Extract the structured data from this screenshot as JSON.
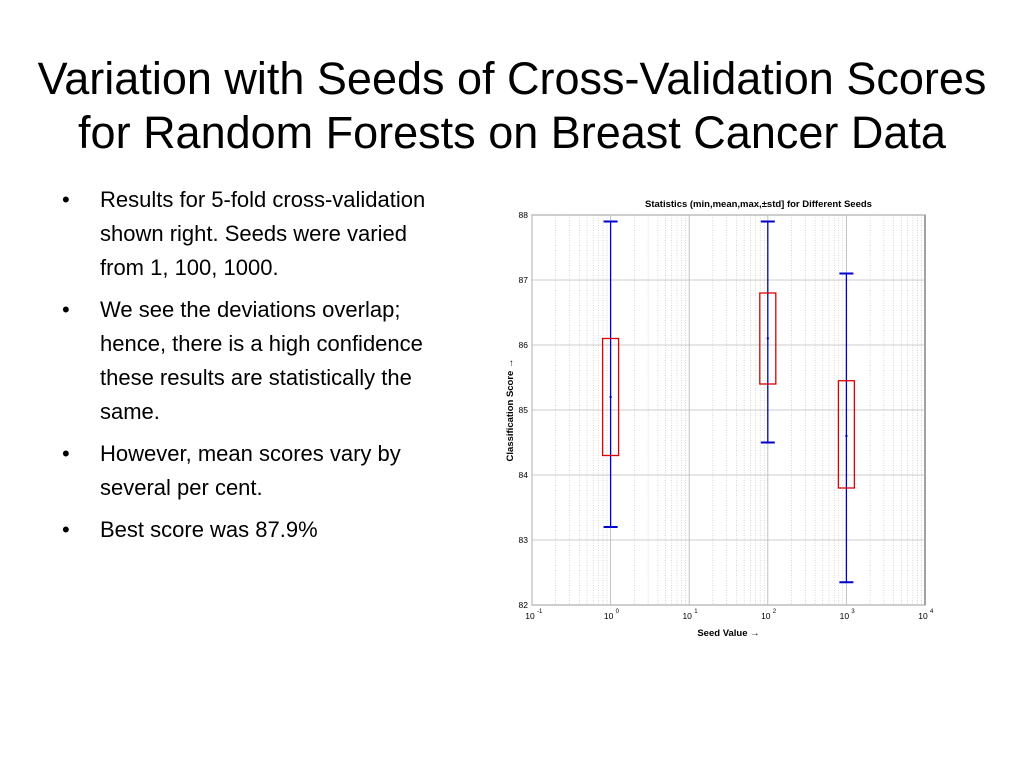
{
  "slide": {
    "title": "Variation with Seeds of Cross-Validation Scores for Random Forests on Breast Cancer Data"
  },
  "bullets": [
    "Results for 5-fold cross-validation shown right. Seeds were varied from 1, 100, 1000.",
    "We see the deviations overlap; hence, there is a high confidence these results are statistically the same.",
    "However, mean scores vary by several per cent.",
    "Best score was 87.9%"
  ],
  "bullet_glyph": "•",
  "chart_data": {
    "type": "box",
    "title": "Statistics (min,mean,max,±std] for Different Seeds",
    "xlabel": "Seed Value →",
    "ylabel": "Classification Score →",
    "x_scale": "log",
    "xlim": [
      0.1,
      10000
    ],
    "ylim": [
      82,
      88
    ],
    "x_ticks": [
      {
        "base": "10",
        "exp": "-1"
      },
      {
        "base": "10",
        "exp": "0"
      },
      {
        "base": "10",
        "exp": "1"
      },
      {
        "base": "10",
        "exp": "2"
      },
      {
        "base": "10",
        "exp": "3"
      },
      {
        "base": "10",
        "exp": "4"
      }
    ],
    "y_ticks": [
      "82",
      "83",
      "84",
      "85",
      "86",
      "87",
      "88"
    ],
    "grid": true,
    "series": [
      {
        "seed": 1,
        "min": 83.2,
        "mean": 85.2,
        "max": 87.9,
        "std_low": 84.3,
        "std_high": 86.1
      },
      {
        "seed": 100,
        "min": 84.5,
        "mean": 86.1,
        "max": 87.9,
        "std_low": 85.4,
        "std_high": 86.8
      },
      {
        "seed": 1000,
        "min": 82.35,
        "mean": 84.6,
        "max": 87.1,
        "std_low": 83.8,
        "std_high": 85.45
      }
    ],
    "colors": {
      "whisker": "#0000cc",
      "box": "#dd0000",
      "grid": "#bbbbbb"
    }
  }
}
